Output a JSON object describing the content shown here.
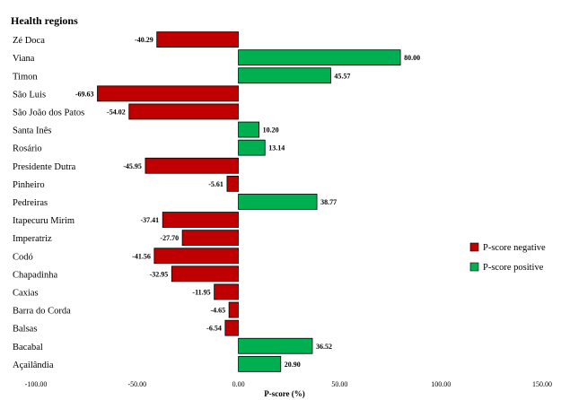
{
  "chart_data": {
    "type": "bar",
    "orientation": "horizontal",
    "title": "Health regions",
    "xlabel": "P-score (%)",
    "xlim": [
      -100,
      150
    ],
    "xticks": [
      "-100.00",
      "-50.00",
      "0.00",
      "50.00",
      "100.00",
      "150.00"
    ],
    "xtick_values": [
      -100,
      -50,
      0,
      50,
      100,
      150
    ],
    "categories": [
      "Zé Doca",
      "Viana",
      "Timon",
      "São Luis",
      "São João dos Patos",
      "Santa Inês",
      "Rosário",
      "Presidente Dutra",
      "Pinheiro",
      "Pedreiras",
      "Itapecuru Mirim",
      "Imperatriz",
      "Codó",
      "Chapadinha",
      "Caxias",
      "Barra do Corda",
      "Balsas",
      "Bacabal",
      "Açailândia"
    ],
    "values": [
      -40.29,
      80.0,
      45.57,
      -69.63,
      -54.02,
      10.2,
      13.14,
      -45.95,
      -5.61,
      38.77,
      -37.41,
      -27.7,
      -41.56,
      -32.95,
      -11.95,
      -4.65,
      -6.54,
      36.52,
      20.9
    ],
    "value_labels": [
      "-40.29",
      "80.00",
      "45.57",
      "-69.63",
      "-54.02",
      "10.20",
      "13.14",
      "-45.95",
      "-5.61",
      "38.77",
      "-37.41",
      "-27.70",
      "-41.56",
      "-32.95",
      "-11.95",
      "-4.65",
      "-6.54",
      "36.52",
      "20.90"
    ],
    "legend": [
      {
        "label": "P-score negative",
        "color": "#c00000"
      },
      {
        "label": "P-score positive",
        "color": "#00b050"
      }
    ],
    "legend_position": "right",
    "grid": false
  }
}
